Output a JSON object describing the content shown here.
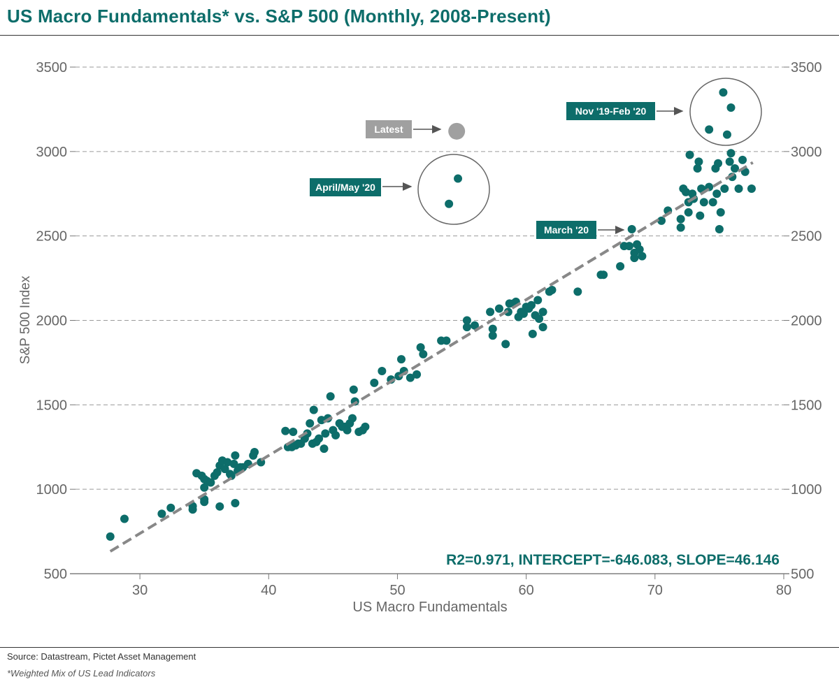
{
  "title": "US Macro Fundamentals* vs. S&P 500 (Monthly, 2008-Present)",
  "source": "Source: Datastream, Pictet Asset Management",
  "footnote": "*Weighted Mix of US Lead Indicators",
  "colors": {
    "accent": "#0d6d6a",
    "latest": "#a0a0a0",
    "trendline": "#888888",
    "grid": "#9a9a9a"
  },
  "chart_data": {
    "type": "scatter",
    "xlabel": "US Macro Fundamentals",
    "ylabel": "S&P 500 Index",
    "xlim": [
      25,
      80
    ],
    "ylim": [
      500,
      3500
    ],
    "xticks": [
      30,
      40,
      50,
      60,
      70,
      80
    ],
    "yticks": [
      500,
      1000,
      1500,
      2000,
      2500,
      3000,
      3500
    ],
    "grid": "horizontal dashed",
    "secondary_y_axis": true,
    "stats_label": "R2=0.971, INTERCEPT=-646.083, SLOPE=46.146",
    "trendline": {
      "intercept": -646.083,
      "slope": 46.146,
      "x_range": [
        27.7,
        77.6
      ]
    },
    "latest_point": {
      "label": "Latest",
      "x": 54.6,
      "y": 3120
    },
    "annotations": [
      {
        "label": "Nov '19-Feb '20",
        "target_x": 75.5,
        "target_y": 3250,
        "circled": true
      },
      {
        "label": "April/May '20",
        "target_x": 54.0,
        "target_y": 2750,
        "circled": true
      },
      {
        "label": "March '20",
        "target_x": 68.2,
        "target_y": 2540,
        "circled": false
      }
    ],
    "series": [
      {
        "name": "",
        "points": [
          [
            27.7,
            720
          ],
          [
            28.8,
            825
          ],
          [
            31.7,
            855
          ],
          [
            32.4,
            890
          ],
          [
            34.1,
            880
          ],
          [
            34.1,
            900
          ],
          [
            34.4,
            1095
          ],
          [
            34.8,
            1080
          ],
          [
            35.0,
            1010
          ],
          [
            35.0,
            1060
          ],
          [
            35.2,
            1050
          ],
          [
            35.5,
            1040
          ],
          [
            35.8,
            1080
          ],
          [
            36.0,
            1100
          ],
          [
            36.2,
            1140
          ],
          [
            36.4,
            1170
          ],
          [
            36.6,
            1120
          ],
          [
            36.8,
            1160
          ],
          [
            37.0,
            1090
          ],
          [
            37.1,
            1080
          ],
          [
            37.3,
            1150
          ],
          [
            37.4,
            1200
          ],
          [
            37.6,
            1110
          ],
          [
            37.8,
            1130
          ],
          [
            38.0,
            1130
          ],
          [
            38.4,
            1150
          ],
          [
            38.8,
            1200
          ],
          [
            38.9,
            1220
          ],
          [
            39.4,
            1160
          ],
          [
            35.0,
            940
          ],
          [
            35.0,
            925
          ],
          [
            36.2,
            898
          ],
          [
            37.4,
            918
          ],
          [
            41.3,
            1345
          ],
          [
            41.5,
            1250
          ],
          [
            41.8,
            1250
          ],
          [
            41.9,
            1340
          ],
          [
            42.1,
            1260
          ],
          [
            42.3,
            1270
          ],
          [
            42.5,
            1270
          ],
          [
            42.8,
            1300
          ],
          [
            43.0,
            1330
          ],
          [
            43.2,
            1390
          ],
          [
            43.4,
            1270
          ],
          [
            43.5,
            1470
          ],
          [
            43.7,
            1280
          ],
          [
            43.9,
            1300
          ],
          [
            44.1,
            1410
          ],
          [
            44.3,
            1240
          ],
          [
            44.4,
            1330
          ],
          [
            44.6,
            1420
          ],
          [
            44.8,
            1550
          ],
          [
            45.0,
            1350
          ],
          [
            45.2,
            1320
          ],
          [
            45.5,
            1390
          ],
          [
            45.7,
            1370
          ],
          [
            45.9,
            1370
          ],
          [
            46.1,
            1350
          ],
          [
            46.3,
            1390
          ],
          [
            46.5,
            1420
          ],
          [
            46.6,
            1590
          ],
          [
            46.7,
            1520
          ],
          [
            47.0,
            1340
          ],
          [
            47.3,
            1350
          ],
          [
            47.5,
            1370
          ],
          [
            48.2,
            1630
          ],
          [
            48.8,
            1700
          ],
          [
            49.5,
            1650
          ],
          [
            50.1,
            1670
          ],
          [
            50.3,
            1770
          ],
          [
            50.5,
            1700
          ],
          [
            51.0,
            1660
          ],
          [
            51.5,
            1680
          ],
          [
            51.8,
            1840
          ],
          [
            52.0,
            1800
          ],
          [
            53.4,
            1880
          ],
          [
            53.8,
            1880
          ],
          [
            55.4,
            1960
          ],
          [
            55.4,
            2000
          ],
          [
            56.0,
            1970
          ],
          [
            57.2,
            2050
          ],
          [
            57.4,
            1950
          ],
          [
            57.4,
            1910
          ],
          [
            57.9,
            2070
          ],
          [
            58.4,
            1860
          ],
          [
            58.6,
            2050
          ],
          [
            58.7,
            2100
          ],
          [
            59.0,
            2100
          ],
          [
            59.2,
            2110
          ],
          [
            59.4,
            2020
          ],
          [
            59.6,
            2050
          ],
          [
            59.8,
            2040
          ],
          [
            60.0,
            2080
          ],
          [
            60.2,
            2070
          ],
          [
            60.4,
            2090
          ],
          [
            60.5,
            1920
          ],
          [
            60.7,
            2030
          ],
          [
            60.9,
            2120
          ],
          [
            61.0,
            2010
          ],
          [
            61.3,
            2050
          ],
          [
            61.3,
            1960
          ],
          [
            61.8,
            2170
          ],
          [
            62.0,
            2180
          ],
          [
            64.0,
            2170
          ],
          [
            65.8,
            2270
          ],
          [
            66.0,
            2270
          ],
          [
            67.3,
            2320
          ],
          [
            67.6,
            2440
          ],
          [
            68.0,
            2440
          ],
          [
            68.2,
            2540
          ],
          [
            68.4,
            2370
          ],
          [
            68.4,
            2400
          ],
          [
            68.6,
            2450
          ],
          [
            68.8,
            2420
          ],
          [
            69.0,
            2380
          ],
          [
            70.5,
            2590
          ],
          [
            71.0,
            2650
          ],
          [
            72.0,
            2550
          ],
          [
            72.0,
            2600
          ],
          [
            72.2,
            2780
          ],
          [
            72.4,
            2760
          ],
          [
            72.6,
            2700
          ],
          [
            72.6,
            2640
          ],
          [
            72.7,
            2980
          ],
          [
            72.9,
            2750
          ],
          [
            73.0,
            2720
          ],
          [
            73.3,
            2900
          ],
          [
            73.4,
            2940
          ],
          [
            73.5,
            2620
          ],
          [
            73.6,
            2780
          ],
          [
            73.8,
            2700
          ],
          [
            74.2,
            2790
          ],
          [
            74.5,
            2700
          ],
          [
            74.7,
            2900
          ],
          [
            74.8,
            2750
          ],
          [
            74.9,
            2930
          ],
          [
            75.0,
            2540
          ],
          [
            75.1,
            2640
          ],
          [
            75.4,
            2780
          ],
          [
            75.8,
            2940
          ],
          [
            75.9,
            2990
          ],
          [
            76.0,
            2850
          ],
          [
            76.2,
            2900
          ],
          [
            76.5,
            2780
          ],
          [
            76.8,
            2950
          ],
          [
            77.0,
            2880
          ],
          [
            77.5,
            2780
          ],
          [
            74.2,
            3130
          ],
          [
            75.3,
            3350
          ],
          [
            75.6,
            3100
          ],
          [
            75.9,
            3260
          ],
          [
            54.0,
            2690
          ],
          [
            54.7,
            2840
          ]
        ]
      }
    ]
  }
}
